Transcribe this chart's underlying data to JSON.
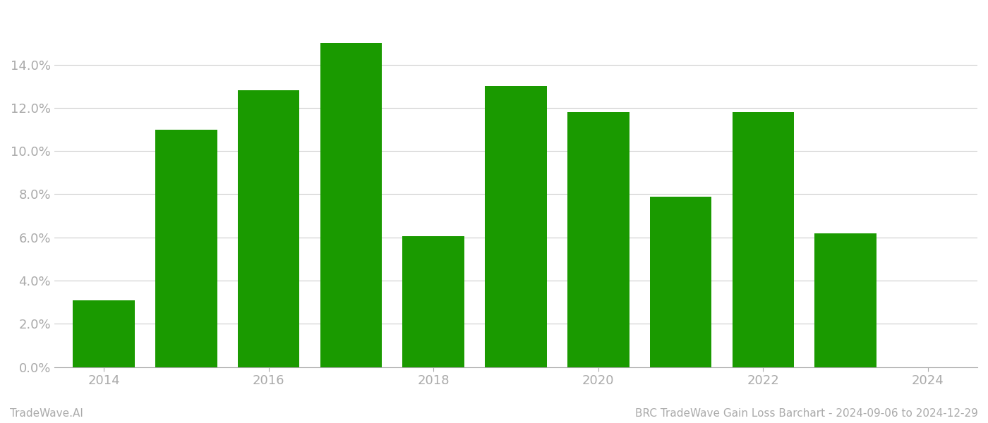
{
  "years": [
    2014,
    2015,
    2016,
    2017,
    2018,
    2019,
    2020,
    2021,
    2022,
    2023
  ],
  "values": [
    0.031,
    0.11,
    0.128,
    0.15,
    0.0605,
    0.13,
    0.118,
    0.079,
    0.118,
    0.062
  ],
  "bar_color": "#1a9a00",
  "background_color": "#ffffff",
  "grid_color": "#cccccc",
  "axis_color": "#aaaaaa",
  "tick_color": "#aaaaaa",
  "ylim": [
    0,
    0.165
  ],
  "yticks": [
    0.0,
    0.02,
    0.04,
    0.06,
    0.08,
    0.1,
    0.12,
    0.14
  ],
  "xticks": [
    2014,
    2016,
    2018,
    2020,
    2022,
    2024
  ],
  "xlim": [
    2013.4,
    2024.6
  ],
  "footer_left": "TradeWave.AI",
  "footer_right": "BRC TradeWave Gain Loss Barchart - 2024-09-06 to 2024-12-29",
  "footer_color": "#aaaaaa",
  "footer_fontsize": 11,
  "tick_fontsize": 13,
  "bar_width": 0.75
}
